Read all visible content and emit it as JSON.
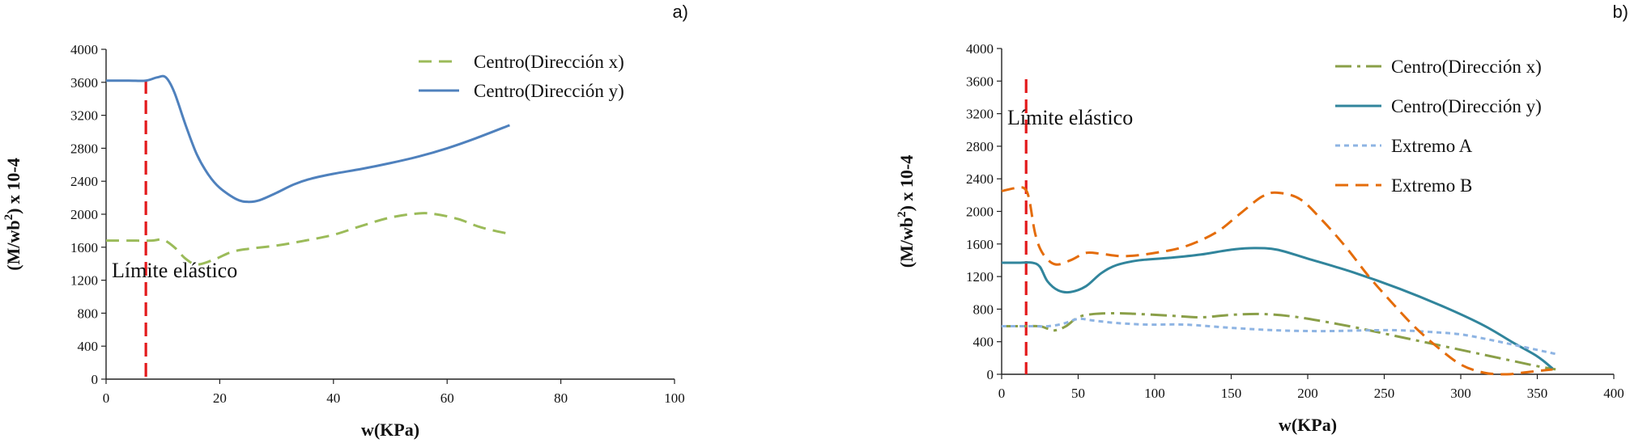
{
  "chart_data": [
    {
      "type": "line",
      "panel_label": "a)",
      "xlabel": "w(KPa)",
      "ylabel_main": "(M/wb",
      "ylabel_sup": "2",
      "ylabel_tail": ")  x 10-4",
      "xlim": [
        0,
        100
      ],
      "ylim": [
        0,
        4000
      ],
      "x_ticks": [
        0,
        20,
        40,
        60,
        80,
        100
      ],
      "y_ticks": [
        0,
        400,
        800,
        1200,
        1600,
        2000,
        2400,
        2800,
        3200,
        3600,
        4000
      ],
      "annotation": "Límite elástico",
      "elastic_limit_x": 7,
      "legend_position": "top-right",
      "series": [
        {
          "name": "Centro(Dirección x)",
          "color": "#9bbb59",
          "dash": "dashed",
          "points": [
            [
              0,
              1680
            ],
            [
              4,
              1680
            ],
            [
              8,
              1680
            ],
            [
              10,
              1690
            ],
            [
              12,
              1600
            ],
            [
              14,
              1460
            ],
            [
              16,
              1390
            ],
            [
              19,
              1450
            ],
            [
              22,
              1540
            ],
            [
              25,
              1580
            ],
            [
              30,
              1620
            ],
            [
              35,
              1680
            ],
            [
              40,
              1750
            ],
            [
              45,
              1860
            ],
            [
              50,
              1960
            ],
            [
              55,
              2010
            ],
            [
              58,
              2000
            ],
            [
              62,
              1940
            ],
            [
              66,
              1840
            ],
            [
              71,
              1760
            ]
          ]
        },
        {
          "name": "Centro(Dirección y)",
          "color": "#4f81bd",
          "dash": "solid",
          "points": [
            [
              0,
              3620
            ],
            [
              4,
              3620
            ],
            [
              7,
              3620
            ],
            [
              9,
              3660
            ],
            [
              10.5,
              3660
            ],
            [
              12,
              3480
            ],
            [
              14,
              3080
            ],
            [
              16,
              2720
            ],
            [
              18,
              2480
            ],
            [
              20,
              2320
            ],
            [
              23,
              2180
            ],
            [
              25,
              2150
            ],
            [
              27,
              2170
            ],
            [
              30,
              2260
            ],
            [
              33,
              2360
            ],
            [
              36,
              2430
            ],
            [
              40,
              2490
            ],
            [
              45,
              2550
            ],
            [
              50,
              2620
            ],
            [
              55,
              2700
            ],
            [
              60,
              2800
            ],
            [
              65,
              2920
            ],
            [
              71,
              3080
            ]
          ]
        }
      ]
    },
    {
      "type": "line",
      "panel_label": "b)",
      "xlabel": "w(KPa)",
      "ylabel_main": "(M/wb",
      "ylabel_sup": "2",
      "ylabel_tail": ")  x 10-4",
      "xlim": [
        0,
        400
      ],
      "ylim": [
        0,
        4000
      ],
      "x_ticks": [
        0,
        50,
        100,
        150,
        200,
        250,
        300,
        350,
        400
      ],
      "y_ticks": [
        0,
        400,
        800,
        1200,
        1600,
        2000,
        2400,
        2800,
        3200,
        3600,
        4000
      ],
      "annotation": "Límite elástico",
      "elastic_limit_x": 16,
      "legend_position": "top-right",
      "series": [
        {
          "name": "Centro(Dirección x)",
          "color": "#8a9f48",
          "dash": "dashdot",
          "points": [
            [
              0,
              590
            ],
            [
              15,
              590
            ],
            [
              25,
              590
            ],
            [
              30,
              560
            ],
            [
              35,
              540
            ],
            [
              42,
              590
            ],
            [
              50,
              700
            ],
            [
              60,
              740
            ],
            [
              75,
              750
            ],
            [
              90,
              740
            ],
            [
              110,
              720
            ],
            [
              130,
              700
            ],
            [
              150,
              730
            ],
            [
              170,
              740
            ],
            [
              190,
              710
            ],
            [
              210,
              650
            ],
            [
              230,
              580
            ],
            [
              250,
              500
            ],
            [
              270,
              420
            ],
            [
              290,
              340
            ],
            [
              310,
              260
            ],
            [
              330,
              180
            ],
            [
              350,
              100
            ],
            [
              362,
              60
            ]
          ]
        },
        {
          "name": "Centro(Dirección y)",
          "color": "#31859c",
          "dash": "solid",
          "points": [
            [
              0,
              1370
            ],
            [
              12,
              1370
            ],
            [
              20,
              1370
            ],
            [
              25,
              1320
            ],
            [
              30,
              1140
            ],
            [
              37,
              1030
            ],
            [
              45,
              1010
            ],
            [
              55,
              1080
            ],
            [
              65,
              1240
            ],
            [
              75,
              1340
            ],
            [
              90,
              1400
            ],
            [
              110,
              1430
            ],
            [
              130,
              1470
            ],
            [
              150,
              1530
            ],
            [
              165,
              1550
            ],
            [
              180,
              1530
            ],
            [
              200,
              1420
            ],
            [
              230,
              1250
            ],
            [
              260,
              1050
            ],
            [
              290,
              820
            ],
            [
              315,
              600
            ],
            [
              335,
              380
            ],
            [
              350,
              220
            ],
            [
              360,
              70
            ]
          ]
        },
        {
          "name": "Extremo A",
          "color": "#8eb4e3",
          "dash": "dotted",
          "points": [
            [
              0,
              590
            ],
            [
              20,
              590
            ],
            [
              30,
              590
            ],
            [
              40,
              620
            ],
            [
              50,
              680
            ],
            [
              60,
              660
            ],
            [
              75,
              630
            ],
            [
              95,
              610
            ],
            [
              120,
              610
            ],
            [
              150,
              570
            ],
            [
              180,
              540
            ],
            [
              210,
              530
            ],
            [
              240,
              540
            ],
            [
              260,
              540
            ],
            [
              280,
              520
            ],
            [
              300,
              490
            ],
            [
              320,
              420
            ],
            [
              340,
              340
            ],
            [
              362,
              250
            ]
          ]
        },
        {
          "name": "Extremo B",
          "color": "#e46c0a",
          "dash": "dashed",
          "points": [
            [
              0,
              2250
            ],
            [
              10,
              2290
            ],
            [
              15,
              2280
            ],
            [
              18,
              2150
            ],
            [
              22,
              1720
            ],
            [
              27,
              1480
            ],
            [
              35,
              1350
            ],
            [
              45,
              1400
            ],
            [
              55,
              1490
            ],
            [
              65,
              1480
            ],
            [
              80,
              1450
            ],
            [
              100,
              1490
            ],
            [
              120,
              1570
            ],
            [
              140,
              1740
            ],
            [
              155,
              1960
            ],
            [
              170,
              2180
            ],
            [
              180,
              2230
            ],
            [
              195,
              2150
            ],
            [
              210,
              1880
            ],
            [
              225,
              1560
            ],
            [
              240,
              1200
            ],
            [
              255,
              880
            ],
            [
              270,
              580
            ],
            [
              285,
              330
            ],
            [
              300,
              120
            ],
            [
              315,
              20
            ],
            [
              330,
              0
            ],
            [
              345,
              30
            ],
            [
              360,
              60
            ]
          ]
        }
      ]
    }
  ]
}
